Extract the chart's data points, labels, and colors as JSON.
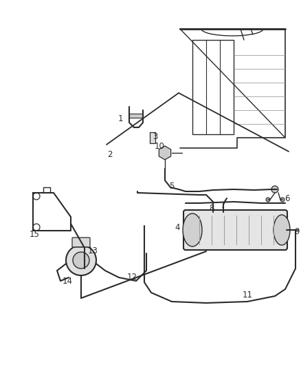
{
  "background_color": "#ffffff",
  "line_color": "#2a2a2a",
  "label_color": "#2a2a2a",
  "fig_width": 4.38,
  "fig_height": 5.33,
  "dpi": 100
}
